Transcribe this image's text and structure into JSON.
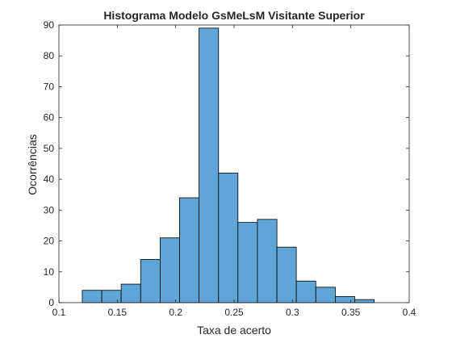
{
  "chart_data": {
    "type": "bar",
    "title": "Histograma Modelo GsMeLsM Visitante Superior",
    "xlabel": "Taxa de acerto",
    "ylabel": "Ocorrências",
    "xlim": [
      0.1,
      0.4
    ],
    "ylim": [
      0,
      90
    ],
    "xticks": [
      0.1,
      0.15,
      0.2,
      0.25,
      0.3,
      0.35,
      0.4
    ],
    "xtick_labels": [
      "0.1",
      "0.15",
      "0.2",
      "0.25",
      "0.3",
      "0.35",
      "0.4"
    ],
    "yticks": [
      0,
      10,
      20,
      30,
      40,
      50,
      60,
      70,
      80,
      90
    ],
    "ytick_labels": [
      "0",
      "10",
      "20",
      "30",
      "40",
      "50",
      "60",
      "70",
      "80",
      "90"
    ],
    "bin_edges": [
      0.12,
      0.1367,
      0.1533,
      0.17,
      0.1867,
      0.2033,
      0.22,
      0.2367,
      0.2533,
      0.27,
      0.2867,
      0.3033,
      0.32,
      0.3367,
      0.3533,
      0.37,
      0.3867
    ],
    "values": [
      4,
      4,
      6,
      14,
      21,
      34,
      89,
      42,
      26,
      27,
      18,
      7,
      5,
      2,
      1,
      0
    ],
    "bar_color": "#5fa6d8",
    "edge_color": "#000000",
    "grid": false,
    "box": true
  }
}
